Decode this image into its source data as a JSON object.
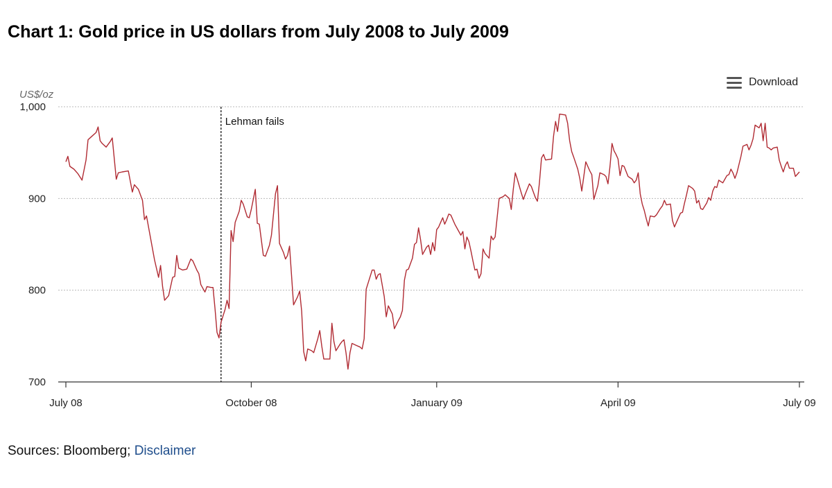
{
  "page": {
    "title": "Chart 1: Gold price in US dollars from July 2008 to July 2009",
    "download_label": "Download",
    "download_icon": "menu-icon",
    "sources_prefix": "Sources: Bloomberg;",
    "disclaimer_label": "Disclaimer"
  },
  "colors": {
    "line": "#b02a32",
    "grid": "#b9b9b9",
    "axis": "#333333",
    "link": "#1f4e8c"
  },
  "chart_data": {
    "type": "line",
    "title": "Chart 1: Gold price in US dollars from July 2008 to July 2009",
    "ylabel": "US$/oz",
    "xlabel": "",
    "ylim": [
      700,
      1000
    ],
    "yticks": [
      {
        "value": 700,
        "label": "700"
      },
      {
        "value": 800,
        "label": "800"
      },
      {
        "value": 900,
        "label": "900"
      },
      {
        "value": 1000,
        "label": "1,000"
      }
    ],
    "xlim": [
      0,
      364
    ],
    "xticks": [
      {
        "day": 0,
        "label": "July 08"
      },
      {
        "day": 92,
        "label": "October 08"
      },
      {
        "day": 184,
        "label": "January 09"
      },
      {
        "day": 274,
        "label": "April 09"
      },
      {
        "day": 364,
        "label": "July 09"
      }
    ],
    "grid": true,
    "annotations": [
      {
        "day": 77,
        "label": "Lehman fails",
        "style": "dashed-vertical"
      }
    ],
    "series": [
      {
        "name": "Gold price (US$/oz)",
        "x_unit": "days since 1 July 2008",
        "points": [
          [
            0,
            940
          ],
          [
            1,
            946
          ],
          [
            2,
            935
          ],
          [
            4,
            932
          ],
          [
            6,
            927
          ],
          [
            8,
            920
          ],
          [
            10,
            942
          ],
          [
            11,
            964
          ],
          [
            13,
            968
          ],
          [
            15,
            972
          ],
          [
            16,
            978
          ],
          [
            17,
            963
          ],
          [
            18,
            960
          ],
          [
            20,
            956
          ],
          [
            22,
            962
          ],
          [
            23,
            966
          ],
          [
            25,
            921
          ],
          [
            26,
            928
          ],
          [
            28,
            929
          ],
          [
            31,
            930
          ],
          [
            33,
            907
          ],
          [
            34,
            915
          ],
          [
            36,
            910
          ],
          [
            38,
            898
          ],
          [
            39,
            877
          ],
          [
            40,
            881
          ],
          [
            42,
            857
          ],
          [
            44,
            833
          ],
          [
            46,
            814
          ],
          [
            47,
            827
          ],
          [
            48,
            804
          ],
          [
            49,
            789
          ],
          [
            51,
            794
          ],
          [
            53,
            814
          ],
          [
            54,
            815
          ],
          [
            55,
            838
          ],
          [
            56,
            824
          ],
          [
            58,
            822
          ],
          [
            60,
            823
          ],
          [
            62,
            834
          ],
          [
            63,
            832
          ],
          [
            65,
            822
          ],
          [
            66,
            818
          ],
          [
            67,
            806
          ],
          [
            69,
            798
          ],
          [
            70,
            804
          ],
          [
            72,
            803
          ],
          [
            73,
            803
          ],
          [
            74,
            780
          ],
          [
            75,
            754
          ],
          [
            76,
            748
          ],
          [
            77,
            765
          ],
          [
            78,
            772
          ],
          [
            79,
            779
          ],
          [
            80,
            789
          ],
          [
            81,
            780
          ],
          [
            82,
            865
          ],
          [
            83,
            853
          ],
          [
            84,
            874
          ],
          [
            86,
            886
          ],
          [
            87,
            898
          ],
          [
            88,
            894
          ],
          [
            90,
            880
          ],
          [
            91,
            879
          ],
          [
            92,
            888
          ],
          [
            94,
            910
          ],
          [
            95,
            873
          ],
          [
            96,
            872
          ],
          [
            98,
            838
          ],
          [
            99,
            837
          ],
          [
            101,
            849
          ],
          [
            102,
            860
          ],
          [
            104,
            905
          ],
          [
            105,
            914
          ],
          [
            106,
            851
          ],
          [
            108,
            841
          ],
          [
            109,
            834
          ],
          [
            110,
            838
          ],
          [
            111,
            848
          ],
          [
            113,
            784
          ],
          [
            115,
            793
          ],
          [
            116,
            799
          ],
          [
            117,
            777
          ],
          [
            118,
            733
          ],
          [
            119,
            723
          ],
          [
            120,
            736
          ],
          [
            122,
            734
          ],
          [
            123,
            732
          ],
          [
            125,
            747
          ],
          [
            126,
            756
          ],
          [
            127,
            739
          ],
          [
            128,
            725
          ],
          [
            130,
            725
          ],
          [
            131,
            725
          ],
          [
            132,
            764
          ],
          [
            133,
            744
          ],
          [
            134,
            734
          ],
          [
            136,
            741
          ],
          [
            137,
            744
          ],
          [
            138,
            746
          ],
          [
            139,
            732
          ],
          [
            140,
            714
          ],
          [
            141,
            732
          ],
          [
            142,
            742
          ],
          [
            144,
            740
          ],
          [
            146,
            738
          ],
          [
            147,
            736
          ],
          [
            148,
            747
          ],
          [
            149,
            801
          ],
          [
            150,
            808
          ],
          [
            152,
            822
          ],
          [
            153,
            822
          ],
          [
            154,
            812
          ],
          [
            155,
            817
          ],
          [
            156,
            818
          ],
          [
            158,
            793
          ],
          [
            159,
            771
          ],
          [
            160,
            783
          ],
          [
            162,
            774
          ],
          [
            163,
            758
          ],
          [
            165,
            767
          ],
          [
            166,
            771
          ],
          [
            167,
            778
          ],
          [
            168,
            811
          ],
          [
            169,
            822
          ],
          [
            170,
            823
          ],
          [
            172,
            835
          ],
          [
            173,
            850
          ],
          [
            174,
            852
          ],
          [
            175,
            868
          ],
          [
            176,
            855
          ],
          [
            177,
            839
          ],
          [
            178,
            843
          ],
          [
            179,
            847
          ],
          [
            180,
            849
          ],
          [
            181,
            839
          ],
          [
            182,
            852
          ],
          [
            183,
            843
          ],
          [
            184,
            866
          ],
          [
            185,
            869
          ],
          [
            186,
            874
          ],
          [
            187,
            879
          ],
          [
            188,
            872
          ],
          [
            189,
            877
          ],
          [
            190,
            883
          ],
          [
            191,
            882
          ],
          [
            193,
            872
          ],
          [
            195,
            864
          ],
          [
            196,
            860
          ],
          [
            197,
            864
          ],
          [
            198,
            845
          ],
          [
            199,
            858
          ],
          [
            200,
            853
          ],
          [
            201,
            843
          ],
          [
            202,
            832
          ],
          [
            203,
            822
          ],
          [
            204,
            823
          ],
          [
            205,
            813
          ],
          [
            206,
            818
          ],
          [
            207,
            845
          ],
          [
            208,
            840
          ],
          [
            210,
            835
          ],
          [
            211,
            859
          ],
          [
            212,
            855
          ],
          [
            213,
            858
          ],
          [
            215,
            900
          ],
          [
            217,
            902
          ],
          [
            218,
            904
          ],
          [
            220,
            900
          ],
          [
            221,
            888
          ],
          [
            222,
            910
          ],
          [
            223,
            928
          ],
          [
            224,
            921
          ],
          [
            226,
            906
          ],
          [
            227,
            899
          ],
          [
            228,
            905
          ],
          [
            230,
            916
          ],
          [
            231,
            913
          ],
          [
            232,
            907
          ],
          [
            233,
            901
          ],
          [
            234,
            897
          ],
          [
            235,
            917
          ],
          [
            236,
            944
          ],
          [
            237,
            948
          ],
          [
            238,
            942
          ],
          [
            241,
            943
          ],
          [
            242,
            968
          ],
          [
            243,
            984
          ],
          [
            244,
            973
          ],
          [
            245,
            992
          ],
          [
            248,
            991
          ],
          [
            249,
            982
          ],
          [
            250,
            963
          ],
          [
            251,
            951
          ],
          [
            252,
            945
          ],
          [
            254,
            932
          ],
          [
            255,
            922
          ],
          [
            256,
            908
          ],
          [
            258,
            940
          ],
          [
            260,
            930
          ],
          [
            261,
            926
          ],
          [
            262,
            899
          ],
          [
            264,
            914
          ],
          [
            265,
            928
          ],
          [
            267,
            926
          ],
          [
            268,
            924
          ],
          [
            269,
            916
          ],
          [
            270,
            935
          ],
          [
            271,
            960
          ],
          [
            272,
            952
          ],
          [
            273,
            948
          ],
          [
            274,
            943
          ],
          [
            275,
            925
          ],
          [
            276,
            936
          ],
          [
            277,
            935
          ],
          [
            279,
            924
          ],
          [
            281,
            921
          ],
          [
            282,
            917
          ],
          [
            283,
            920
          ],
          [
            284,
            928
          ],
          [
            285,
            905
          ],
          [
            286,
            894
          ],
          [
            287,
            887
          ],
          [
            288,
            878
          ],
          [
            289,
            870
          ],
          [
            290,
            881
          ],
          [
            292,
            880
          ],
          [
            293,
            882
          ],
          [
            295,
            889
          ],
          [
            296,
            892
          ],
          [
            297,
            898
          ],
          [
            298,
            893
          ],
          [
            300,
            894
          ],
          [
            301,
            876
          ],
          [
            302,
            869
          ],
          [
            303,
            874
          ],
          [
            305,
            884
          ],
          [
            306,
            885
          ],
          [
            307,
            895
          ],
          [
            308,
            904
          ],
          [
            309,
            914
          ],
          [
            311,
            911
          ],
          [
            312,
            908
          ],
          [
            313,
            895
          ],
          [
            314,
            898
          ],
          [
            315,
            889
          ],
          [
            316,
            888
          ],
          [
            318,
            895
          ],
          [
            319,
            901
          ],
          [
            320,
            898
          ],
          [
            321,
            908
          ],
          [
            322,
            913
          ],
          [
            323,
            912
          ],
          [
            324,
            920
          ],
          [
            326,
            917
          ],
          [
            327,
            921
          ],
          [
            328,
            925
          ],
          [
            329,
            926
          ],
          [
            330,
            932
          ],
          [
            331,
            928
          ],
          [
            332,
            922
          ],
          [
            333,
            928
          ],
          [
            335,
            946
          ],
          [
            336,
            957
          ],
          [
            337,
            958
          ],
          [
            338,
            959
          ],
          [
            339,
            953
          ],
          [
            340,
            958
          ],
          [
            341,
            965
          ],
          [
            342,
            980
          ],
          [
            344,
            977
          ],
          [
            345,
            982
          ],
          [
            346,
            963
          ],
          [
            347,
            982
          ],
          [
            348,
            956
          ],
          [
            349,
            955
          ],
          [
            350,
            953
          ],
          [
            351,
            955
          ],
          [
            353,
            956
          ],
          [
            354,
            942
          ],
          [
            355,
            935
          ],
          [
            356,
            929
          ],
          [
            357,
            936
          ],
          [
            358,
            940
          ],
          [
            359,
            933
          ],
          [
            361,
            933
          ],
          [
            362,
            924
          ],
          [
            364,
            929
          ]
        ]
      }
    ]
  }
}
